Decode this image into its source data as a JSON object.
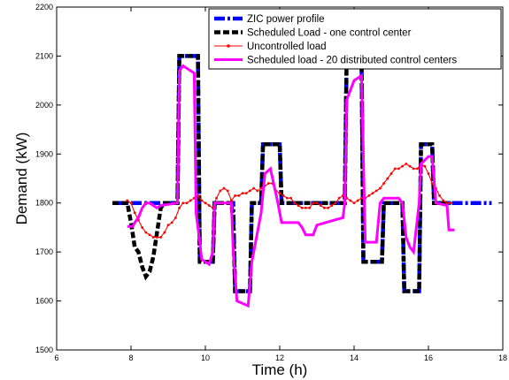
{
  "chart_data": {
    "type": "line",
    "title": "",
    "xlabel": "Time (h)",
    "ylabel": "Demand (kW)",
    "xlim": [
      6,
      18
    ],
    "ylim": [
      1500,
      2200
    ],
    "xticks": [
      6,
      8,
      10,
      12,
      14,
      16,
      18
    ],
    "yticks": [
      1500,
      1600,
      1700,
      1800,
      1900,
      2000,
      2100,
      2200
    ],
    "grid": false,
    "legend_position": "top-right",
    "series": [
      {
        "name": "ZIC power profile",
        "color": "#0000ff",
        "style": "dash-dot-thick",
        "marker": "",
        "x": [
          7.5,
          9.25,
          9.3,
          9.8,
          9.85,
          10.2,
          10.25,
          10.75,
          10.8,
          11.2,
          11.25,
          11.5,
          11.55,
          12.0,
          12.05,
          13.75,
          13.8,
          14.2,
          14.25,
          14.75,
          14.8,
          15.3,
          15.35,
          15.75,
          15.8,
          16.1,
          16.15,
          17.7
        ],
        "y": [
          1800,
          1800,
          2100,
          2100,
          1680,
          1680,
          1800,
          1800,
          1620,
          1620,
          1800,
          1800,
          1920,
          1920,
          1800,
          1800,
          2100,
          2100,
          1680,
          1680,
          1800,
          1800,
          1620,
          1620,
          1920,
          1920,
          1800,
          1800
        ]
      },
      {
        "name": "Scheduled Load - one control center",
        "color": "#000000",
        "style": "dash-thick",
        "marker": "",
        "x": [
          7.5,
          7.9,
          8.0,
          8.1,
          8.2,
          8.3,
          8.4,
          8.5,
          8.6,
          8.7,
          8.8,
          8.9,
          9.25,
          9.3,
          9.8,
          9.85,
          10.2,
          10.25,
          10.7,
          10.75,
          10.8,
          10.9,
          11.2,
          11.25,
          11.5,
          11.55,
          12.0,
          12.05,
          13.75,
          13.8,
          14.2,
          14.25,
          14.75,
          14.8,
          15.3,
          15.35,
          15.75,
          15.8,
          16.1,
          16.15,
          16.6
        ],
        "y": [
          1800,
          1800,
          1760,
          1710,
          1700,
          1670,
          1650,
          1660,
          1690,
          1740,
          1790,
          1800,
          1800,
          2100,
          2100,
          1680,
          1680,
          1800,
          1800,
          1760,
          1620,
          1620,
          1620,
          1800,
          1800,
          1920,
          1920,
          1800,
          1800,
          2100,
          2100,
          1680,
          1680,
          1800,
          1800,
          1620,
          1620,
          1920,
          1920,
          1800,
          1800
        ]
      },
      {
        "name": "Uncontrolled load",
        "color": "#ff0000",
        "style": "solid-thin",
        "marker": "dot",
        "x": [
          7.9,
          8.0,
          8.1,
          8.2,
          8.3,
          8.4,
          8.5,
          8.6,
          8.7,
          8.8,
          8.9,
          9.0,
          9.1,
          9.2,
          9.3,
          9.4,
          9.5,
          9.6,
          9.7,
          9.8,
          9.9,
          10.0,
          10.1,
          10.2,
          10.3,
          10.4,
          10.5,
          10.6,
          10.7,
          10.8,
          10.9,
          11.0,
          11.1,
          11.2,
          11.3,
          11.4,
          11.5,
          11.6,
          11.7,
          11.8,
          11.9,
          12.0,
          12.1,
          12.2,
          12.3,
          12.4,
          12.5,
          12.6,
          12.7,
          12.8,
          12.9,
          13.0,
          13.1,
          13.2,
          13.3,
          13.4,
          13.5,
          13.6,
          13.7,
          13.8,
          13.9,
          14.0,
          14.1,
          14.2,
          14.3,
          14.4,
          14.5,
          14.6,
          14.7,
          14.8,
          14.9,
          15.0,
          15.1,
          15.2,
          15.3,
          15.4,
          15.5,
          15.6,
          15.7,
          15.8,
          15.9,
          16.0,
          16.1,
          16.2,
          16.3,
          16.4,
          16.5,
          16.6
        ],
        "y": [
          1805,
          1800,
          1780,
          1765,
          1750,
          1740,
          1735,
          1730,
          1730,
          1730,
          1740,
          1755,
          1760,
          1770,
          1790,
          1800,
          1800,
          1805,
          1810,
          1815,
          1805,
          1800,
          1795,
          1790,
          1810,
          1825,
          1830,
          1825,
          1805,
          1815,
          1815,
          1820,
          1820,
          1825,
          1830,
          1825,
          1830,
          1835,
          1840,
          1840,
          1825,
          1820,
          1815,
          1810,
          1810,
          1800,
          1795,
          1790,
          1790,
          1790,
          1800,
          1800,
          1795,
          1790,
          1790,
          1795,
          1800,
          1810,
          1815,
          1810,
          1805,
          1800,
          1805,
          1810,
          1810,
          1815,
          1820,
          1825,
          1830,
          1840,
          1850,
          1860,
          1870,
          1870,
          1875,
          1880,
          1875,
          1870,
          1870,
          1880,
          1875,
          1860,
          1840,
          1830,
          1815,
          1805,
          1800,
          1800
        ]
      },
      {
        "name": "Scheduled load - 20 distributed control centers",
        "color": "#ff00ff",
        "style": "solid-thick",
        "marker": "",
        "x": [
          7.9,
          8.05,
          8.1,
          8.2,
          8.3,
          8.4,
          8.5,
          8.6,
          8.7,
          8.8,
          9.25,
          9.3,
          9.4,
          9.7,
          9.75,
          9.85,
          9.9,
          10.1,
          10.2,
          10.25,
          10.7,
          10.75,
          10.85,
          11.15,
          11.25,
          11.5,
          11.6,
          11.75,
          11.95,
          12.05,
          12.5,
          12.6,
          12.7,
          12.9,
          13.0,
          13.7,
          13.75,
          13.8,
          14.0,
          14.2,
          14.3,
          14.6,
          14.7,
          14.8,
          15.2,
          15.3,
          15.4,
          15.5,
          15.6,
          15.75,
          15.8,
          16.0,
          16.1,
          16.2,
          16.5,
          16.55,
          16.7
        ],
        "y": [
          1752,
          1752,
          1760,
          1770,
          1790,
          1800,
          1800,
          1795,
          1790,
          1795,
          1800,
          2070,
          2080,
          2065,
          1780,
          1720,
          1685,
          1675,
          1700,
          1800,
          1800,
          1700,
          1600,
          1590,
          1680,
          1780,
          1860,
          1870,
          1800,
          1760,
          1760,
          1750,
          1735,
          1735,
          1755,
          1770,
          1800,
          2010,
          2050,
          2060,
          1720,
          1720,
          1800,
          1810,
          1810,
          1800,
          1730,
          1710,
          1700,
          1800,
          1880,
          1895,
          1895,
          1800,
          1795,
          1745,
          1745
        ]
      }
    ]
  }
}
